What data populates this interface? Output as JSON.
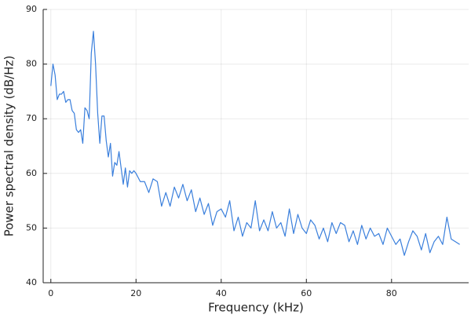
{
  "chart_data": {
    "type": "line",
    "xlabel": "Frequency (kHz)",
    "ylabel": "Power spectral density (dB/Hz)",
    "x": [
      0,
      0.5,
      1,
      1.5,
      2,
      2.5,
      3,
      3.5,
      4,
      4.5,
      5,
      5.5,
      6,
      6.5,
      7,
      7.5,
      8,
      8.5,
      9,
      9.5,
      10,
      10.5,
      11,
      11.5,
      12,
      12.5,
      13,
      13.5,
      14,
      14.5,
      15,
      15.5,
      16,
      16.5,
      17,
      17.5,
      18,
      18.5,
      19,
      19.5,
      20,
      21,
      22,
      23,
      24,
      25,
      26,
      27,
      28,
      29,
      30,
      31,
      32,
      33,
      34,
      35,
      36,
      37,
      38,
      39,
      40,
      41,
      42,
      43,
      44,
      45,
      46,
      47,
      48,
      49,
      50,
      51,
      52,
      53,
      54,
      55,
      56,
      57,
      58,
      59,
      60,
      61,
      62,
      63,
      64,
      65,
      66,
      67,
      68,
      69,
      70,
      71,
      72,
      73,
      74,
      75,
      76,
      77,
      78,
      79,
      80,
      81,
      82,
      83,
      84,
      85,
      86,
      87,
      88,
      89,
      90,
      91,
      92,
      93,
      94,
      95,
      96
    ],
    "values": [
      76,
      80,
      78,
      73.5,
      74.5,
      74.5,
      75,
      73,
      73.5,
      73.5,
      71.5,
      71,
      68,
      67.5,
      68,
      65.5,
      72,
      71.5,
      70,
      82,
      86,
      80,
      71,
      65.5,
      70.5,
      70.5,
      66,
      63,
      65.5,
      59.5,
      62,
      61.5,
      64,
      61,
      58,
      61,
      57.5,
      60.5,
      60,
      60.5,
      60,
      58.5,
      58.5,
      56.5,
      59,
      58.5,
      54,
      56.5,
      54,
      57.5,
      55.5,
      58,
      55,
      57,
      53,
      55.5,
      52.5,
      54.5,
      50.5,
      53,
      53.5,
      52,
      55,
      49.5,
      52,
      48.5,
      51,
      50,
      55,
      49.5,
      51.5,
      49.5,
      53,
      50,
      51,
      48.5,
      53.5,
      49,
      52.5,
      50,
      49,
      51.5,
      50.5,
      48,
      50,
      47.5,
      51,
      49,
      51,
      50.5,
      47.5,
      49.5,
      47,
      50.5,
      48,
      50,
      48.5,
      49,
      47,
      50,
      48.5,
      47,
      48,
      45,
      47.5,
      49.5,
      48.5,
      46,
      49,
      45.5,
      47.5,
      48.5,
      47,
      52,
      48,
      47.5,
      47
    ],
    "color": "#3a7fdc",
    "xlim": [
      -1.8,
      98.1
    ],
    "xticks": [
      0,
      20,
      40,
      60,
      80
    ],
    "ylim": [
      40,
      90
    ],
    "yticks": [
      40,
      50,
      60,
      70,
      80,
      90
    ],
    "grid": true
  }
}
